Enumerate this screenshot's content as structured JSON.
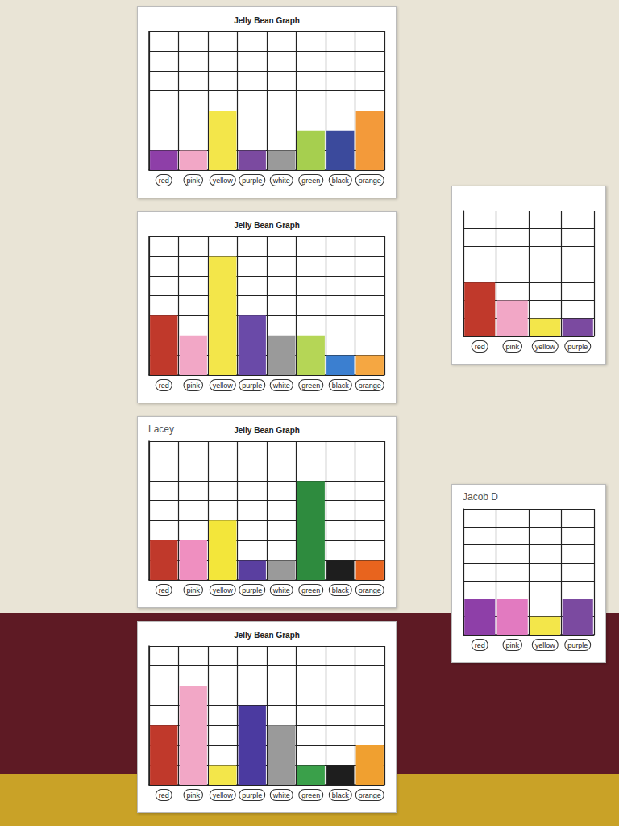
{
  "chart_data": [
    {
      "type": "bar",
      "title": "Jelly Bean Graph",
      "categories": [
        "red",
        "pink",
        "yellow",
        "purple",
        "white",
        "green",
        "black",
        "orange"
      ],
      "values": [
        1,
        1,
        3,
        1,
        1,
        2,
        2,
        3
      ],
      "colors": [
        "#8e3fa8",
        "#f2a7c6",
        "#f3e64a",
        "#7b4aa0",
        "#9a9a9a",
        "#a6cf4f",
        "#3b4a9c",
        "#f39a3a"
      ],
      "ylim": [
        0,
        7
      ],
      "yticks": [
        0,
        1,
        2,
        3,
        4,
        5,
        6,
        7
      ],
      "grid": true,
      "tick_labels": "x"
    },
    {
      "type": "bar",
      "title": "Jelly Bean Graph",
      "categories": [
        "red",
        "pink",
        "yellow",
        "purple",
        "white",
        "green",
        "black",
        "orange"
      ],
      "values": [
        3,
        2,
        6,
        3,
        2,
        2,
        1,
        1
      ],
      "colors": [
        "#c0392b",
        "#f2a7c6",
        "#f3e64a",
        "#6a4aa8",
        "#9a9a9a",
        "#b5d656",
        "#3b7fd0",
        "#f5a742"
      ],
      "ylim": [
        0,
        7
      ],
      "yticks": [
        0,
        1,
        2,
        3,
        4,
        5,
        6,
        7
      ],
      "grid": true,
      "tick_labels": "x"
    },
    {
      "type": "bar",
      "title": "Jelly Bean Graph",
      "subtitle": "Lacey",
      "categories": [
        "red",
        "pink",
        "yellow",
        "purple",
        "white",
        "green",
        "black",
        "orange"
      ],
      "values": [
        2,
        2,
        3,
        1,
        1,
        5,
        1,
        1
      ],
      "colors": [
        "#c0392b",
        "#ef8fc0",
        "#f3e63a",
        "#5a3fa0",
        "#9a9a9a",
        "#2e8b3e",
        "#1e1e1e",
        "#e8641e"
      ],
      "ylim": [
        0,
        7
      ],
      "yticks": [
        0,
        1,
        2,
        3,
        4,
        5,
        6,
        7
      ],
      "grid": true,
      "tick_labels": "x"
    },
    {
      "type": "bar",
      "title": "Jelly Bean Graph",
      "categories": [
        "red",
        "pink",
        "yellow",
        "purple",
        "white",
        "green",
        "black",
        "orange"
      ],
      "values": [
        3,
        5,
        1,
        4,
        3,
        1,
        1,
        2
      ],
      "colors": [
        "#c0392b",
        "#f2a7c6",
        "#f3e64a",
        "#4b3aa0",
        "#9a9a9a",
        "#3aa04a",
        "#1e1e1e",
        "#f0a030"
      ],
      "ylim": [
        0,
        7
      ],
      "yticks": [
        0,
        1,
        2,
        3,
        4,
        5,
        6,
        7
      ],
      "grid": true,
      "tick_labels": "x"
    },
    {
      "type": "bar",
      "categories": [
        "red",
        "pink",
        "yellow",
        "purple"
      ],
      "values": [
        3,
        2,
        1,
        1
      ],
      "colors": [
        "#c0392b",
        "#f2a7c6",
        "#f3e64a",
        "#7b4aa0"
      ],
      "ylim": [
        0,
        7
      ],
      "yticks": [
        0,
        1,
        2,
        3,
        4,
        5,
        6,
        7
      ],
      "grid": true,
      "tick_labels": "x"
    },
    {
      "type": "bar",
      "subtitle": "Jacob D",
      "categories": [
        "red",
        "pink",
        "yellow",
        "purple"
      ],
      "values": [
        2,
        2,
        1,
        2
      ],
      "colors": [
        "#8e3fa8",
        "#e27ac0",
        "#f3e64a",
        "#7b4aa0"
      ],
      "ylim": [
        0,
        7
      ],
      "yticks": [
        0,
        1,
        2,
        3,
        4,
        5,
        6,
        7
      ],
      "grid": true,
      "tick_labels": "x"
    }
  ]
}
